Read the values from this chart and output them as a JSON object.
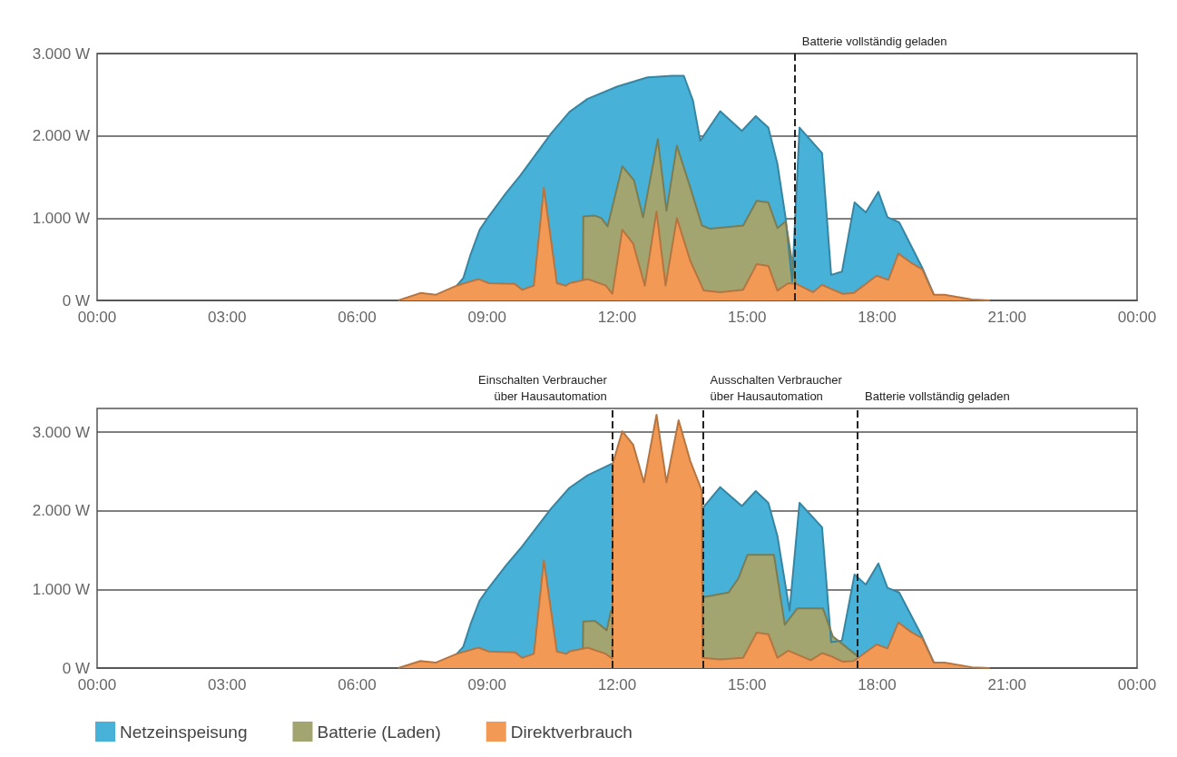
{
  "chart_data": [
    {
      "type": "area",
      "xlim": [
        0,
        24
      ],
      "xticks": [
        {
          "value": 0,
          "label": "00:00"
        },
        {
          "value": 3,
          "label": "03:00"
        },
        {
          "value": 6,
          "label": "06:00"
        },
        {
          "value": 9,
          "label": "09:00"
        },
        {
          "value": 12,
          "label": "12:00"
        },
        {
          "value": 15,
          "label": "15:00"
        },
        {
          "value": 18,
          "label": "18:00"
        },
        {
          "value": 21,
          "label": "21:00"
        },
        {
          "value": 24,
          "label": "00:00"
        }
      ],
      "ylim": [
        0,
        3000
      ],
      "yticks": [
        {
          "value": 0,
          "label": "0 W"
        },
        {
          "value": 1000,
          "label": "1.000 W"
        },
        {
          "value": 2000,
          "label": "2.000 W"
        },
        {
          "value": 3000,
          "label": "3.000 W"
        }
      ],
      "grid": "y",
      "series": [
        {
          "color": "#48b1d8",
          "x": [
            8.3,
            8.45,
            8.62,
            8.83,
            9.01,
            9.43,
            9.77,
            10.48,
            10.9,
            11.32,
            12.01,
            12.7,
            13.27,
            13.54,
            13.75,
            13.92,
            14.38,
            14.88,
            15.2,
            15.49,
            15.7,
            15.89,
            16.04,
            16.21,
            16.73,
            16.94,
            17.19,
            17.48,
            17.74,
            18.03,
            18.24,
            18.51,
            19.04,
            19.31
          ],
          "values": [
            180,
            270,
            560,
            860,
            1000,
            1300,
            1520,
            2030,
            2290,
            2450,
            2600,
            2710,
            2730,
            2730,
            2430,
            1940,
            2300,
            2060,
            2240,
            2100,
            1660,
            1000,
            230,
            2100,
            1790,
            310,
            350,
            1190,
            1070,
            1320,
            1010,
            950,
            400,
            70
          ]
        },
        {
          "color": "#a2a56f",
          "x": [
            11.21,
            11.22,
            11.49,
            11.64,
            11.78,
            12.12,
            12.39,
            12.6,
            12.94,
            13.14,
            13.38,
            13.69,
            13.96,
            14.15,
            14.91,
            15.22,
            15.49,
            15.7,
            15.89,
            16.12
          ],
          "values": [
            250,
            1020,
            1030,
            1000,
            900,
            1630,
            1460,
            1010,
            1960,
            1090,
            1880,
            1370,
            910,
            870,
            910,
            1210,
            1190,
            880,
            960,
            200
          ]
        },
        {
          "color": "#f29a55",
          "x": [
            6.95,
            7.46,
            7.82,
            8.3,
            8.8,
            9.04,
            9.64,
            9.81,
            10.08,
            10.31,
            10.61,
            10.82,
            10.9,
            11.32,
            11.74,
            11.89,
            12.12,
            12.37,
            12.64,
            12.91,
            13.12,
            13.38,
            13.69,
            14.0,
            14.38,
            14.91,
            15.22,
            15.49,
            15.7,
            15.95,
            16.14,
            16.52,
            16.73,
            16.94,
            17.21,
            17.46,
            17.99,
            18.26,
            18.49,
            18.78,
            19.04,
            19.31,
            19.56,
            20.19,
            20.6
          ],
          "values": [
            0,
            90,
            70,
            180,
            260,
            210,
            200,
            130,
            180,
            1370,
            210,
            180,
            210,
            260,
            180,
            80,
            860,
            690,
            180,
            1080,
            180,
            1000,
            480,
            120,
            100,
            130,
            440,
            420,
            120,
            210,
            200,
            100,
            190,
            140,
            80,
            90,
            300,
            250,
            570,
            460,
            380,
            70,
            70,
            10,
            0
          ]
        }
      ],
      "ref_lines": [
        {
          "axis": "x",
          "value": 16.1,
          "label": "Batterie vollständig geladen",
          "line_style": "dashed"
        }
      ]
    },
    {
      "type": "area",
      "xlim": [
        0,
        24
      ],
      "xticks": [
        {
          "value": 0,
          "label": "00:00"
        },
        {
          "value": 3,
          "label": "03:00"
        },
        {
          "value": 6,
          "label": "06:00"
        },
        {
          "value": 9,
          "label": "09:00"
        },
        {
          "value": 12,
          "label": "12:00"
        },
        {
          "value": 15,
          "label": "15:00"
        },
        {
          "value": 18,
          "label": "18:00"
        },
        {
          "value": 21,
          "label": "21:00"
        },
        {
          "value": 24,
          "label": "00:00"
        }
      ],
      "ylim": [
        0,
        3300
      ],
      "yticks": [
        {
          "value": 0,
          "label": "0 W"
        },
        {
          "value": 1000,
          "label": "1.000 W"
        },
        {
          "value": 2000,
          "label": "2.000 W"
        },
        {
          "value": 3000,
          "label": "3.000 W"
        }
      ],
      "grid": "y",
      "legend": "bottom",
      "series": [
        {
          "name": "Netzeinspeisung",
          "color": "#48b1d8",
          "x": [
            8.3,
            8.45,
            8.62,
            8.83,
            9.01,
            9.43,
            9.77,
            10.48,
            10.9,
            11.32,
            11.89,
            11.9,
            13.97,
            14.38,
            14.88,
            15.2,
            15.49,
            15.7,
            15.98,
            16.21,
            16.73,
            16.94,
            17.19,
            17.48,
            17.74,
            18.03,
            18.24,
            18.51,
            19.04,
            19.31
          ],
          "values": [
            180,
            270,
            560,
            860,
            1000,
            1300,
            1520,
            2030,
            2290,
            2450,
            2600,
            null,
            2030,
            2300,
            2060,
            2250,
            2100,
            1680,
            730,
            2100,
            1790,
            330,
            350,
            1190,
            1060,
            1330,
            1020,
            960,
            400,
            70
          ]
        },
        {
          "name": "Batterie (Laden)",
          "color": "#a2a56f",
          "x": [
            11.21,
            11.22,
            11.49,
            11.76,
            11.86,
            11.89,
            11.9,
            13.97,
            13.98,
            14.57,
            14.8,
            15.01,
            15.62,
            15.87,
            16.16,
            16.75,
            16.98,
            17.19,
            17.53
          ],
          "values": [
            250,
            590,
            600,
            480,
            730,
            730,
            null,
            130,
            900,
            960,
            1140,
            1440,
            1440,
            550,
            760,
            760,
            400,
            310,
            160
          ]
        },
        {
          "name": "Direktverbrauch",
          "color": "#f29a55",
          "x": [
            6.95,
            7.46,
            7.82,
            8.3,
            8.8,
            9.04,
            9.64,
            9.81,
            10.08,
            10.31,
            10.61,
            10.82,
            10.9,
            11.32,
            11.74,
            11.89,
            11.9,
            12.12,
            12.37,
            12.62,
            12.91,
            13.14,
            13.42,
            13.69,
            13.96,
            13.97,
            14.38,
            14.91,
            15.22,
            15.49,
            15.7,
            15.95,
            16.47,
            16.73,
            16.94,
            17.21,
            17.46,
            17.99,
            18.24,
            18.49,
            18.78,
            19.04,
            19.31,
            19.56,
            20.19,
            20.6
          ],
          "values": [
            0,
            90,
            70,
            180,
            260,
            210,
            200,
            130,
            180,
            1370,
            210,
            180,
            210,
            260,
            180,
            120,
            2600,
            3010,
            2840,
            2360,
            3220,
            2360,
            3150,
            2630,
            2250,
            130,
            110,
            130,
            450,
            430,
            130,
            220,
            100,
            190,
            150,
            80,
            90,
            300,
            250,
            580,
            460,
            380,
            70,
            70,
            10,
            0
          ]
        }
      ],
      "ref_lines": [
        {
          "axis": "x",
          "value": 11.89,
          "label": "Einschalten Verbraucher\nüber Hausautomation",
          "line_style": "dashed"
        },
        {
          "axis": "x",
          "value": 13.98,
          "label": "Ausschalten Verbraucher\nüber Hausautomation",
          "line_style": "dashed"
        },
        {
          "axis": "x",
          "value": 17.55,
          "label": "Batterie vollständig geladen",
          "line_style": "dashed"
        }
      ]
    }
  ]
}
